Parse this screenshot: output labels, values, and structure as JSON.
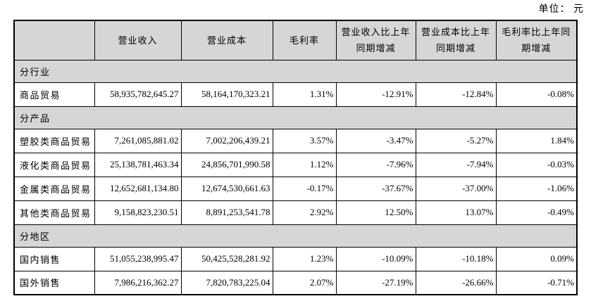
{
  "unit_label": "单位：  元",
  "table": {
    "headers": [
      "",
      "营业收入",
      "营业成本",
      "毛利率",
      "营业收入比上年同期增减",
      "营业成本比上年同期增减",
      "毛利率比上年同期增减"
    ],
    "rows": [
      {
        "type": "section",
        "label": "分行业"
      },
      {
        "type": "data",
        "label": "商品贸易",
        "values": [
          "58,935,782,645.27",
          "58,164,170,323.21",
          "1.31%",
          "-12.91%",
          "-12.84%",
          "-0.08%"
        ]
      },
      {
        "type": "section",
        "label": "分产品"
      },
      {
        "type": "data",
        "label": "塑胶类商品贸易",
        "values": [
          "7,261,085,881.02",
          "7,002,206,439.21",
          "3.57%",
          "-3.47%",
          "-5.27%",
          "1.84%"
        ]
      },
      {
        "type": "data",
        "label": "液化类商品贸易",
        "values": [
          "25,138,781,463.34",
          "24,856,701,990.58",
          "1.12%",
          "-7.96%",
          "-7.94%",
          "-0.03%"
        ]
      },
      {
        "type": "data",
        "label": "金属类商品贸易",
        "values": [
          "12,652,681,134.80",
          "12,674,530,661.63",
          "-0.17%",
          "-37.67%",
          "-37.00%",
          "-1.06%"
        ]
      },
      {
        "type": "data",
        "label": "其他类商品贸易",
        "values": [
          "9,158,823,230.51",
          "8,891,253,541.78",
          "2.92%",
          "12.50%",
          "13.07%",
          "-0.49%"
        ]
      },
      {
        "type": "section",
        "label": "分地区"
      },
      {
        "type": "data",
        "label": "国内销售",
        "values": [
          "51,055,238,995.47",
          "50,425,528,281.92",
          "1.23%",
          "-10.09%",
          "-10.18%",
          "0.09%"
        ]
      },
      {
        "type": "data",
        "label": "国外销售",
        "values": [
          "7,986,216,362.27",
          "7,820,783,225.04",
          "2.07%",
          "-27.19%",
          "-26.66%",
          "-0.71%"
        ]
      }
    ]
  },
  "colors": {
    "header_bg": "#d6d6d6",
    "border": "#000000",
    "text": "#000000"
  }
}
